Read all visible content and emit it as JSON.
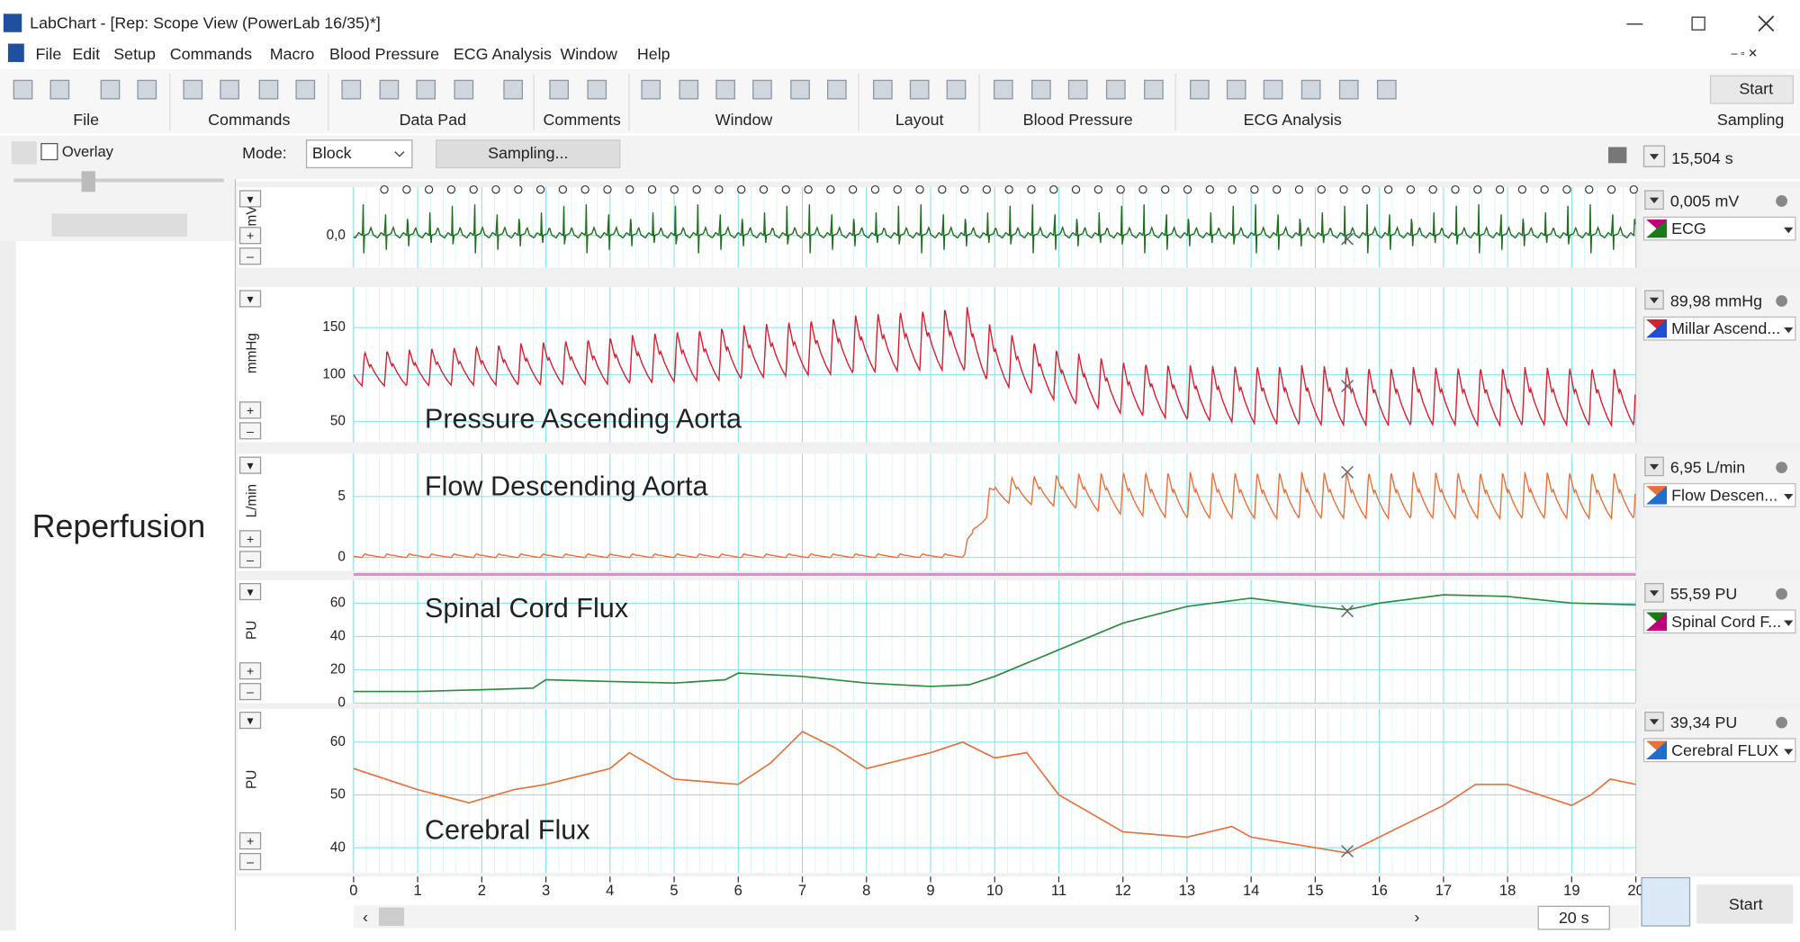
{
  "window": {
    "title": "LabChart - [Rep: Scope View (PowerLab 16/35)*]"
  },
  "menu": [
    "File",
    "Edit",
    "Setup",
    "Commands",
    "Macro",
    "Blood Pressure",
    "ECG Analysis",
    "Window",
    "Help"
  ],
  "toolbar_groups": [
    "File",
    "Commands",
    "Data Pad",
    "Comments",
    "Window",
    "Layout",
    "Blood Pressure",
    "ECG Analysis",
    "Sampling"
  ],
  "sidebar": {
    "overlay": "Overlay",
    "note": "Reperfusion"
  },
  "mode_bar": {
    "label": "Mode:",
    "mode": "Block",
    "sampling": "Sampling...",
    "duration": "15,504 s"
  },
  "time_axis": {
    "xlim": [
      0,
      20
    ],
    "xticks": [
      0,
      1,
      2,
      3,
      4,
      5,
      6,
      7,
      8,
      9,
      10,
      11,
      12,
      13,
      14,
      15,
      16,
      17,
      18,
      19,
      20
    ],
    "minor_step": 0.2,
    "zoom": "20 s"
  },
  "beats": {
    "start": 0.48,
    "period": 0.348
  },
  "cursor": 15.5,
  "buttons": {
    "start": "Start"
  },
  "channels": [
    {
      "name": "ECG",
      "unit": "mV",
      "readout": "0,005 mV",
      "kind": "ecg",
      "color": "#1f6f1f",
      "swatch": [
        "#c0007a",
        "#1a7a1a"
      ],
      "ylim": [
        -0.8,
        1.2
      ],
      "yticks": [
        {
          "value": 0,
          "label": "0,0"
        }
      ],
      "trace": {
        "t": [
          0,
          20
        ],
        "max": [
          0.85,
          0.85
        ],
        "min": [
          -0.45,
          -0.45
        ]
      }
    },
    {
      "name": "Millar Ascend...",
      "unit": "mmHg",
      "readout": "89,98 mmHg",
      "kind": "pressure",
      "color": "#d42030",
      "swatch": [
        "#d42030",
        "#1f4fd0"
      ],
      "annotation": "Pressure Ascending Aorta",
      "ylim": [
        28,
        193
      ],
      "yticks": [
        50,
        100,
        150
      ],
      "trace": {
        "t": [
          0,
          1,
          2,
          3,
          4,
          5,
          6,
          7,
          8,
          9,
          9.6,
          10,
          11,
          12,
          13,
          14,
          15,
          16,
          17,
          18,
          19,
          20
        ],
        "max": [
          124,
          127,
          131,
          135,
          140,
          146,
          152,
          158,
          164,
          170,
          172,
          150,
          126,
          114,
          110,
          110,
          110,
          108,
          108,
          108,
          108,
          108
        ],
        "min": [
          88,
          88,
          89,
          89,
          90,
          92,
          95,
          99,
          102,
          105,
          104,
          90,
          72,
          58,
          52,
          48,
          46,
          46,
          46,
          46,
          46,
          46
        ]
      }
    },
    {
      "name": "Flow Descen...",
      "unit": "L/min",
      "readout": "6,95 L/min",
      "kind": "pressure",
      "color": "#e8703a",
      "swatch": [
        "#e8703a",
        "#1f6fd0"
      ],
      "annotation": "Flow Descending Aorta",
      "ylim": [
        -1.1,
        8.5
      ],
      "yticks": [
        0,
        5
      ],
      "trace": {
        "t": [
          0,
          9.5,
          9.7,
          10,
          11,
          12,
          13,
          20
        ],
        "max": [
          0.3,
          0.3,
          3.5,
          6.5,
          6.8,
          7,
          7,
          7
        ],
        "min": [
          0,
          0,
          1.5,
          4.5,
          4.2,
          3.5,
          3.2,
          3.2
        ]
      }
    },
    {
      "name": "Spinal Cord F...",
      "unit": "PU",
      "readout": "55,59 PU",
      "kind": "smooth",
      "color": "#2e8b3e",
      "swatch": [
        "#1a7a1a",
        "#c0007a"
      ],
      "annotation": "Spinal Cord Flux",
      "ylim": [
        0,
        73.8
      ],
      "yticks": [
        0,
        20,
        40,
        60
      ],
      "trace": {
        "t": [
          0,
          1,
          2,
          2.8,
          3,
          4,
          5,
          5.8,
          6,
          7,
          8,
          9,
          9.6,
          10,
          11,
          12,
          13,
          14,
          15,
          15.5,
          16,
          17,
          18,
          19,
          20
        ],
        "values": [
          7,
          7,
          8,
          9,
          14,
          13,
          12,
          14,
          18,
          16,
          12,
          10,
          11,
          16,
          32,
          48,
          58,
          63,
          58,
          56,
          60,
          65,
          64,
          60,
          59
        ]
      }
    },
    {
      "name": "Cerebral FLUX",
      "unit": "PU",
      "readout": "39,34 PU",
      "kind": "smooth",
      "color": "#e8703a",
      "swatch": [
        "#e8703a",
        "#1f6fd0"
      ],
      "annotation": "Cerebral Flux",
      "ylim": [
        35.2,
        66.3
      ],
      "yticks": [
        40,
        50,
        60
      ],
      "trace": {
        "t": [
          0,
          0.5,
          1,
          1.8,
          2.5,
          3,
          4,
          4.3,
          5,
          6,
          6.5,
          7,
          7.5,
          8,
          9,
          9.5,
          10,
          10.5,
          11,
          12,
          13,
          13.7,
          14,
          15,
          15.5,
          16,
          17,
          17.5,
          18,
          18.5,
          19,
          19.3,
          19.6,
          20
        ],
        "values": [
          55,
          53,
          51,
          48.5,
          51,
          52,
          55,
          58,
          53,
          52,
          56,
          62,
          59,
          55,
          58,
          60,
          57,
          58,
          50,
          43,
          42,
          44,
          42,
          40,
          39,
          42,
          48,
          52,
          52,
          50,
          48,
          50,
          53,
          52
        ]
      }
    }
  ]
}
